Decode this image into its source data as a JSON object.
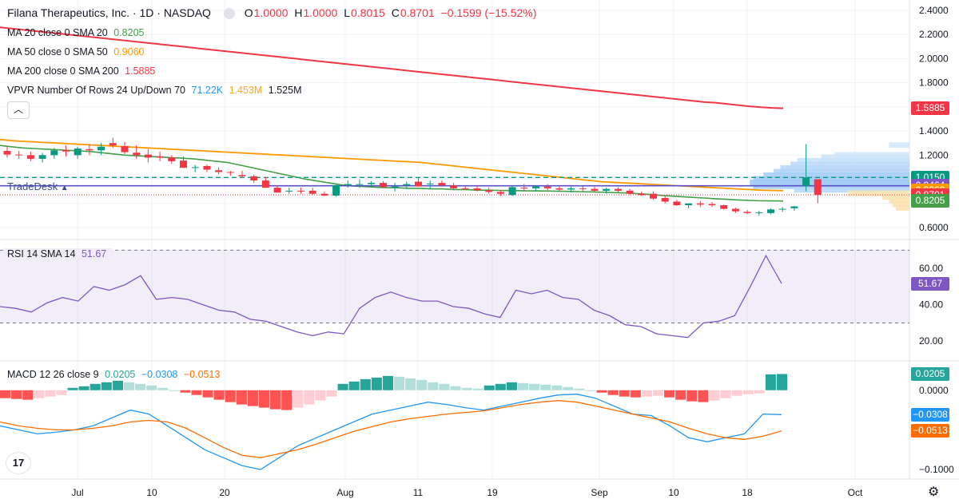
{
  "header": {
    "title": "Filana Therapeutics, Inc. · 1D · NASDAQ",
    "ohlc": {
      "o_label": "O",
      "o": "1.0000",
      "h_label": "H",
      "h": "1.0000",
      "l_label": "L",
      "l": "0.8015",
      "c_label": "C",
      "c": "0.8701",
      "change": "−0.1599 (−15.52%)"
    }
  },
  "legend": {
    "ma20": {
      "label": "MA 20 close 0 SMA 20",
      "value": "0.8205"
    },
    "ma50": {
      "label": "MA 50 close 0 SMA 50",
      "value": "0.9060"
    },
    "ma200": {
      "label": "MA 200 close 0 SMA 200",
      "value": "1.5885"
    },
    "vpvr": {
      "label": "VPVR Number Of Rows 24 Up/Down 70",
      "v1": "71.22K",
      "v2": "1.453M",
      "v3": "1.525M"
    },
    "collapse_icon": "chevron-up-icon"
  },
  "tradedesk_label": "TradeDesk",
  "price_tags": [
    {
      "value": "1.5885",
      "price": 1.5885,
      "color": "#f23645"
    },
    {
      "value": "1.0150",
      "price": 1.015,
      "color": "#089981"
    },
    {
      "value": "0.9464",
      "price": 0.9464,
      "color": "#7e57c2"
    },
    {
      "value": "0.9060",
      "price": 0.906,
      "color": "#ff9800"
    },
    {
      "value": "0.8701",
      "price": 0.8701,
      "color": "#f23645"
    },
    {
      "value": "0.8205",
      "price": 0.8205,
      "color": "#43a047"
    }
  ],
  "rsi_legend": {
    "label": "RSI 14 SMA 14",
    "value": "51.67"
  },
  "rsi_tag": {
    "value": "51.67",
    "level": 51.67,
    "color": "#7e57c2"
  },
  "macd_legend": {
    "label": "MACD 12 26 close 9",
    "v1": "0.0205",
    "v2": "−0.0308",
    "v3": "−0.0513"
  },
  "macd_tags": [
    {
      "value": "0.0205",
      "level": 0.0205,
      "color": "#26a69a"
    },
    {
      "value": "−0.0308",
      "level": -0.0308,
      "color": "#2196f3"
    },
    {
      "value": "−0.0513",
      "level": -0.0513,
      "color": "#ff6d00"
    }
  ],
  "icons": {
    "logo": "tradingview-logo-icon",
    "settings": "gear-icon"
  },
  "chart_data": [
    {
      "type": "candlestick",
      "title": "Filana Therapeutics, Inc. · 1D · NASDAQ",
      "price_axis_ticks": [
        "2.4000",
        "2.2000",
        "2.0000",
        "1.8000",
        "1.6000",
        "1.4000",
        "1.2000",
        "1.0000",
        "0.8000",
        "0.6000"
      ],
      "time_axis_ticks": [
        "Jul",
        "10",
        "20",
        "Aug",
        "11",
        "19",
        "Sep",
        "10",
        "18",
        "Oct"
      ],
      "grid": true,
      "candles": [
        [
          1.235,
          1.275,
          1.18,
          1.205
        ],
        [
          1.205,
          1.235,
          1.17,
          1.2
        ],
        [
          1.2,
          1.23,
          1.15,
          1.17
        ],
        [
          1.17,
          1.22,
          1.14,
          1.2
        ],
        [
          1.2,
          1.26,
          1.17,
          1.24
        ],
        [
          1.24,
          1.28,
          1.19,
          1.23
        ],
        [
          1.2,
          1.27,
          1.17,
          1.255
        ],
        [
          1.25,
          1.29,
          1.2,
          1.24
        ],
        [
          1.24,
          1.3,
          1.2,
          1.27
        ],
        [
          1.3,
          1.345,
          1.26,
          1.28
        ],
        [
          1.275,
          1.31,
          1.21,
          1.225
        ],
        [
          1.22,
          1.28,
          1.17,
          1.2
        ],
        [
          1.205,
          1.25,
          1.14,
          1.18
        ],
        [
          1.19,
          1.23,
          1.15,
          1.18
        ],
        [
          1.18,
          1.2,
          1.13,
          1.15
        ],
        [
          1.155,
          1.19,
          1.1,
          1.095
        ],
        [
          1.095,
          1.12,
          1.06,
          1.1
        ],
        [
          1.11,
          1.12,
          1.06,
          1.08
        ],
        [
          1.075,
          1.1,
          1.04,
          1.06
        ],
        [
          1.06,
          1.07,
          1.03,
          1.055
        ],
        [
          1.035,
          1.07,
          1.01,
          1.025
        ],
        [
          1.025,
          1.04,
          0.97,
          0.99
        ],
        [
          0.99,
          1.02,
          0.94,
          0.93
        ],
        [
          0.93,
          0.95,
          0.89,
          0.89
        ],
        [
          0.9,
          0.93,
          0.88,
          0.905
        ],
        [
          0.905,
          0.93,
          0.88,
          0.9
        ],
        [
          0.905,
          0.93,
          0.87,
          0.88
        ],
        [
          0.88,
          0.9,
          0.86,
          0.865
        ],
        [
          0.865,
          0.955,
          0.855,
          0.95
        ],
        [
          0.95,
          0.99,
          0.93,
          0.96
        ],
        [
          0.955,
          1.0,
          0.93,
          0.96
        ],
        [
          0.96,
          0.985,
          0.94,
          0.97
        ],
        [
          0.97,
          0.985,
          0.93,
          0.935
        ],
        [
          0.93,
          0.97,
          0.9,
          0.94
        ],
        [
          0.95,
          0.98,
          0.92,
          0.96
        ],
        [
          0.98,
          1.01,
          0.95,
          0.94
        ],
        [
          0.96,
          0.99,
          0.92,
          0.965
        ],
        [
          0.97,
          0.99,
          0.94,
          0.95
        ],
        [
          0.95,
          0.97,
          0.91,
          0.925
        ],
        [
          0.925,
          0.94,
          0.91,
          0.92
        ],
        [
          0.925,
          0.945,
          0.9,
          0.91
        ],
        [
          0.91,
          0.93,
          0.88,
          0.895
        ],
        [
          0.895,
          0.91,
          0.86,
          0.88
        ],
        [
          0.87,
          0.95,
          0.86,
          0.935
        ],
        [
          0.93,
          0.96,
          0.9,
          0.925
        ],
        [
          0.925,
          0.95,
          0.9,
          0.94
        ],
        [
          0.94,
          0.96,
          0.91,
          0.925
        ],
        [
          0.925,
          0.945,
          0.9,
          0.915
        ],
        [
          0.915,
          0.94,
          0.89,
          0.925
        ],
        [
          0.925,
          0.94,
          0.9,
          0.92
        ],
        [
          0.92,
          0.94,
          0.89,
          0.905
        ],
        [
          0.905,
          0.93,
          0.88,
          0.92
        ],
        [
          0.92,
          0.935,
          0.89,
          0.905
        ],
        [
          0.905,
          0.92,
          0.87,
          0.88
        ],
        [
          0.88,
          0.9,
          0.86,
          0.87
        ],
        [
          0.88,
          0.9,
          0.83,
          0.84
        ],
        [
          0.845,
          0.86,
          0.8,
          0.815
        ],
        [
          0.815,
          0.83,
          0.78,
          0.785
        ],
        [
          0.785,
          0.8,
          0.76,
          0.8
        ],
        [
          0.8,
          0.82,
          0.77,
          0.79
        ],
        [
          0.795,
          0.81,
          0.77,
          0.785
        ],
        [
          0.785,
          0.79,
          0.75,
          0.755
        ],
        [
          0.755,
          0.765,
          0.72,
          0.735
        ],
        [
          0.73,
          0.745,
          0.71,
          0.72
        ],
        [
          0.72,
          0.74,
          0.7,
          0.725
        ],
        [
          0.72,
          0.76,
          0.71,
          0.75
        ],
        [
          0.75,
          0.77,
          0.73,
          0.755
        ],
        [
          0.76,
          0.78,
          0.74,
          0.775
        ],
        [
          0.946,
          1.2915,
          0.9,
          1.015
        ],
        [
          1.0,
          1.0,
          0.8015,
          0.8701
        ]
      ],
      "ma20": [
        1.28,
        1.27,
        1.26,
        1.255,
        1.25,
        1.245,
        1.24,
        1.235,
        1.23,
        1.22,
        1.21,
        1.2,
        1.195,
        1.19,
        1.185,
        1.18,
        1.175,
        1.17,
        1.16,
        1.15,
        1.14,
        1.12,
        1.1,
        1.08,
        1.06,
        1.04,
        1.02,
        1.0,
        0.985,
        0.97,
        0.955,
        0.945,
        0.94,
        0.935,
        0.93,
        0.93,
        0.925,
        0.925,
        0.92,
        0.92,
        0.915,
        0.915,
        0.91,
        0.91,
        0.908,
        0.906,
        0.905,
        0.904,
        0.903,
        0.902,
        0.9,
        0.898,
        0.896,
        0.893,
        0.89,
        0.887,
        0.882,
        0.876,
        0.869,
        0.862,
        0.856,
        0.85,
        0.845,
        0.839,
        0.834,
        0.829,
        0.825,
        0.822,
        0.821,
        0.8205
      ],
      "ma50": [
        1.33,
        1.32,
        1.315,
        1.31,
        1.305,
        1.3,
        1.295,
        1.29,
        1.285,
        1.28,
        1.275,
        1.27,
        1.265,
        1.26,
        1.255,
        1.25,
        1.245,
        1.24,
        1.235,
        1.23,
        1.225,
        1.22,
        1.215,
        1.21,
        1.205,
        1.2,
        1.195,
        1.19,
        1.185,
        1.18,
        1.175,
        1.17,
        1.165,
        1.16,
        1.155,
        1.15,
        1.145,
        1.14,
        1.13,
        1.12,
        1.11,
        1.1,
        1.09,
        1.08,
        1.07,
        1.06,
        1.05,
        1.04,
        1.03,
        1.02,
        1.01,
        1.0,
        0.99,
        0.98,
        0.975,
        0.97,
        0.965,
        0.96,
        0.955,
        0.95,
        0.945,
        0.94,
        0.935,
        0.93,
        0.925,
        0.92,
        0.915,
        0.91,
        0.908,
        0.906
      ],
      "ma200": [
        2.26,
        2.25,
        2.24,
        2.23,
        2.22,
        2.21,
        2.2,
        2.19,
        2.18,
        2.17,
        2.16,
        2.15,
        2.14,
        2.13,
        2.12,
        2.11,
        2.1,
        2.09,
        2.08,
        2.07,
        2.06,
        2.05,
        2.04,
        2.03,
        2.02,
        2.01,
        2.0,
        1.99,
        1.98,
        1.97,
        1.96,
        1.95,
        1.94,
        1.93,
        1.92,
        1.91,
        1.9,
        1.89,
        1.88,
        1.87,
        1.86,
        1.85,
        1.84,
        1.83,
        1.82,
        1.81,
        1.8,
        1.79,
        1.78,
        1.77,
        1.76,
        1.75,
        1.74,
        1.73,
        1.72,
        1.71,
        1.7,
        1.69,
        1.68,
        1.67,
        1.66,
        1.65,
        1.64,
        1.635,
        1.625,
        1.615,
        1.605,
        1.598,
        1.592,
        1.5885
      ],
      "levels": {
        "dashed_green": 1.015,
        "purple": 0.9464,
        "dotted_red": 0.8701
      },
      "ylim": [
        0.6,
        2.4
      ]
    },
    {
      "type": "line",
      "title": "RSI 14 SMA 14",
      "y_ticks": [
        "60.00",
        "40.00",
        "20.00"
      ],
      "bands": [
        70,
        30
      ],
      "ylim": [
        10,
        75
      ],
      "values": [
        39,
        38,
        36,
        41,
        44,
        42,
        50,
        48,
        51,
        56,
        43,
        44,
        43,
        40,
        37,
        36,
        32,
        31,
        28,
        25,
        23,
        25,
        24,
        38,
        44,
        47,
        44,
        42,
        42,
        39,
        38,
        35,
        33,
        48,
        46,
        48,
        44,
        43,
        37,
        34,
        29,
        28,
        24,
        23,
        22,
        30,
        31,
        34,
        50,
        67,
        51.67
      ]
    },
    {
      "type": "bar",
      "title": "MACD 12 26 close 9",
      "y_ticks": [
        "0.0000",
        "−0.1000"
      ],
      "ylim": [
        -0.11,
        0.035
      ],
      "histogram": [
        -0.01,
        -0.011,
        -0.012,
        -0.01,
        -0.008,
        -0.006,
        0.003,
        0.005,
        0.008,
        0.01,
        0.012,
        0.01,
        0.008,
        0.006,
        0.003,
        0.0,
        -0.003,
        -0.006,
        -0.009,
        -0.012,
        -0.015,
        -0.018,
        -0.02,
        -0.022,
        -0.024,
        -0.025,
        -0.022,
        -0.018,
        -0.013,
        -0.008,
        0.008,
        0.011,
        0.014,
        0.016,
        0.018,
        0.017,
        0.015,
        0.013,
        0.01,
        0.008,
        0.005,
        0.003,
        0.002,
        0.006,
        0.008,
        0.01,
        0.009,
        0.008,
        0.007,
        0.006,
        0.004,
        0.002,
        0.0,
        -0.003,
        -0.006,
        -0.008,
        -0.009,
        -0.008,
        -0.007,
        -0.009,
        -0.012,
        -0.014,
        -0.015,
        -0.013,
        -0.01,
        -0.007,
        -0.005,
        -0.004,
        0.02,
        0.0205
      ],
      "macd": [
        -0.045,
        -0.05,
        -0.055,
        -0.053,
        -0.05,
        -0.045,
        -0.035,
        -0.025,
        -0.03,
        -0.045,
        -0.06,
        -0.075,
        -0.085,
        -0.095,
        -0.1,
        -0.085,
        -0.07,
        -0.06,
        -0.05,
        -0.04,
        -0.03,
        -0.025,
        -0.02,
        -0.015,
        -0.018,
        -0.022,
        -0.025,
        -0.02,
        -0.015,
        -0.01,
        -0.006,
        -0.005,
        -0.01,
        -0.02,
        -0.03,
        -0.032,
        -0.045,
        -0.06,
        -0.065,
        -0.06,
        -0.055,
        -0.03,
        -0.0308
      ],
      "signal": [
        -0.04,
        -0.045,
        -0.048,
        -0.05,
        -0.05,
        -0.048,
        -0.045,
        -0.04,
        -0.038,
        -0.04,
        -0.048,
        -0.06,
        -0.072,
        -0.082,
        -0.085,
        -0.08,
        -0.075,
        -0.068,
        -0.06,
        -0.052,
        -0.046,
        -0.04,
        -0.036,
        -0.033,
        -0.03,
        -0.028,
        -0.026,
        -0.022,
        -0.018,
        -0.015,
        -0.013,
        -0.015,
        -0.02,
        -0.025,
        -0.03,
        -0.035,
        -0.04,
        -0.048,
        -0.055,
        -0.06,
        -0.062,
        -0.058,
        -0.0513
      ]
    }
  ]
}
